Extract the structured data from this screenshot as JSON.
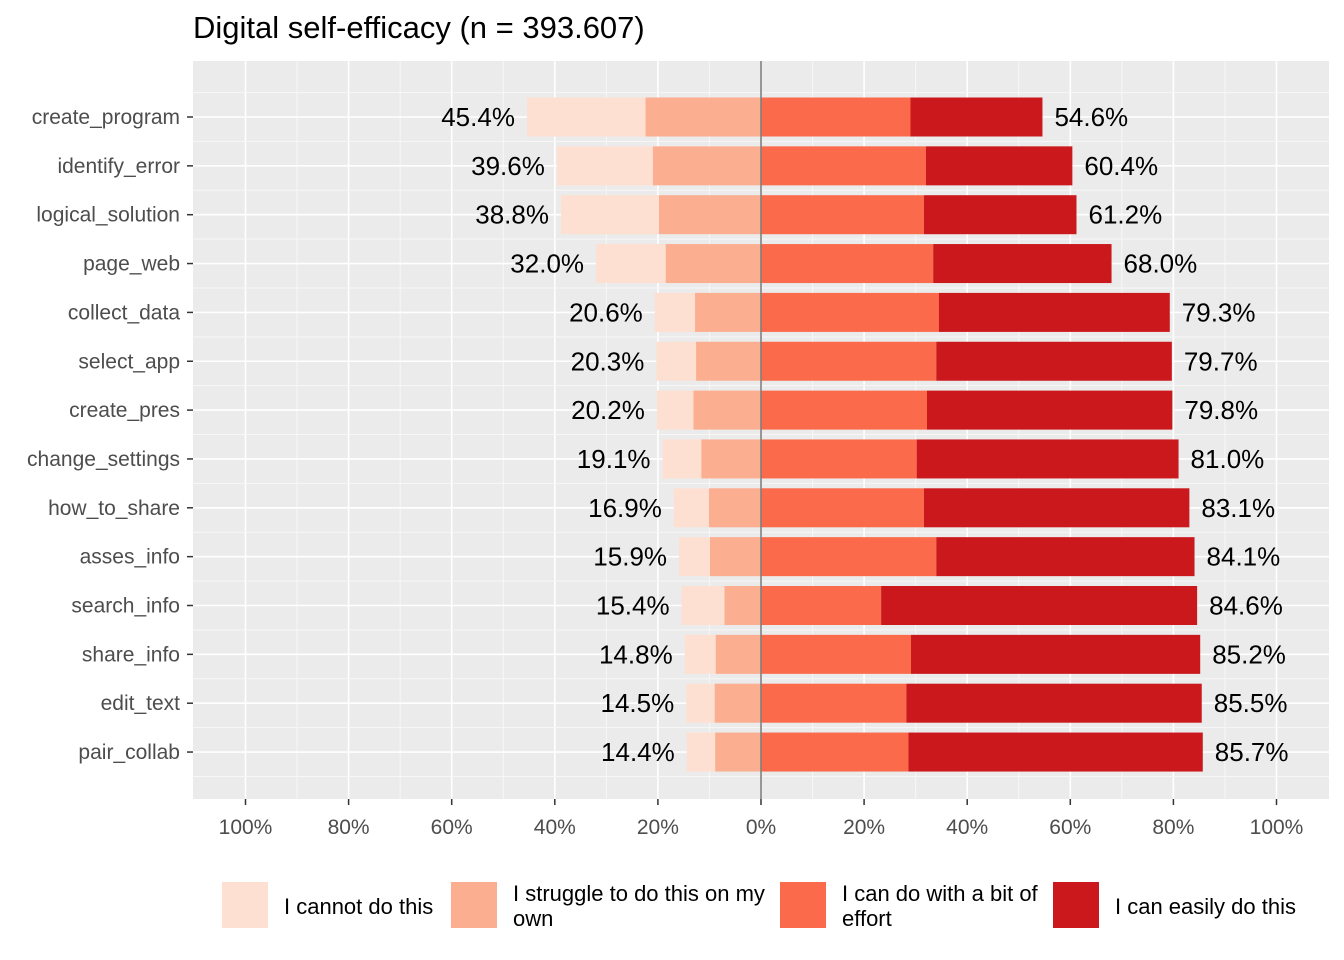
{
  "chart_data": {
    "type": "bar",
    "orientation": "horizontal",
    "diverging": true,
    "title": "Digital self-efficacy (n = 393.607)",
    "xlabel": "",
    "ylabel": "",
    "xlim": [
      -100,
      100
    ],
    "x_ticks": [
      "100%",
      "80%",
      "60%",
      "40%",
      "20%",
      "0%",
      "20%",
      "40%",
      "60%",
      "80%",
      "100%"
    ],
    "categories": [
      "create_program",
      "identify_error",
      "logical_solution",
      "page_web",
      "collect_data",
      "select_app",
      "create_pres",
      "change_settings",
      "how_to_share",
      "asses_info",
      "search_info",
      "share_info",
      "edit_text",
      "pair_collab"
    ],
    "series": [
      {
        "name": "I cannot do this",
        "color": "#fee0d2",
        "side": "negative",
        "values": [
          23.0,
          18.6,
          19.0,
          13.5,
          7.8,
          7.7,
          7.1,
          7.5,
          6.8,
          6.0,
          8.3,
          6.0,
          5.5,
          5.5
        ]
      },
      {
        "name": "I struggle to do this on my own",
        "color": "#fcae91",
        "side": "negative",
        "values": [
          22.4,
          21.0,
          19.8,
          18.5,
          12.8,
          12.6,
          13.1,
          11.6,
          10.1,
          9.9,
          7.1,
          8.8,
          9.0,
          8.9
        ]
      },
      {
        "name": "I can do with a bit of effort",
        "color": "#fb6a4a",
        "side": "positive",
        "values": [
          29.0,
          32.0,
          31.6,
          33.4,
          34.5,
          34.0,
          32.2,
          30.2,
          31.6,
          34.0,
          23.3,
          29.1,
          28.2,
          28.6
        ]
      },
      {
        "name": "I can easily do this",
        "color": "#cb181d",
        "side": "positive",
        "values": [
          25.6,
          28.4,
          29.6,
          34.6,
          44.8,
          45.7,
          47.6,
          50.8,
          51.5,
          50.1,
          61.3,
          56.1,
          57.3,
          57.1
        ]
      }
    ],
    "total_negative_labels": [
      "45.4%",
      "39.6%",
      "38.8%",
      "32.0%",
      "20.6%",
      "20.3%",
      "20.2%",
      "19.1%",
      "16.9%",
      "15.9%",
      "15.4%",
      "14.8%",
      "14.5%",
      "14.4%"
    ],
    "total_positive_labels": [
      "54.6%",
      "60.4%",
      "61.2%",
      "68.0%",
      "79.3%",
      "79.7%",
      "79.8%",
      "81.0%",
      "83.1%",
      "84.1%",
      "84.6%",
      "85.2%",
      "85.5%",
      "85.7%"
    ],
    "grid": true,
    "legend_position": "bottom",
    "legend": [
      "I cannot do this",
      "I struggle to do this on my own",
      "I can do with a bit of effort",
      "I can easily do this"
    ],
    "panel_background": "#ebebeb",
    "zero_line_color": "#7f7f7f"
  }
}
